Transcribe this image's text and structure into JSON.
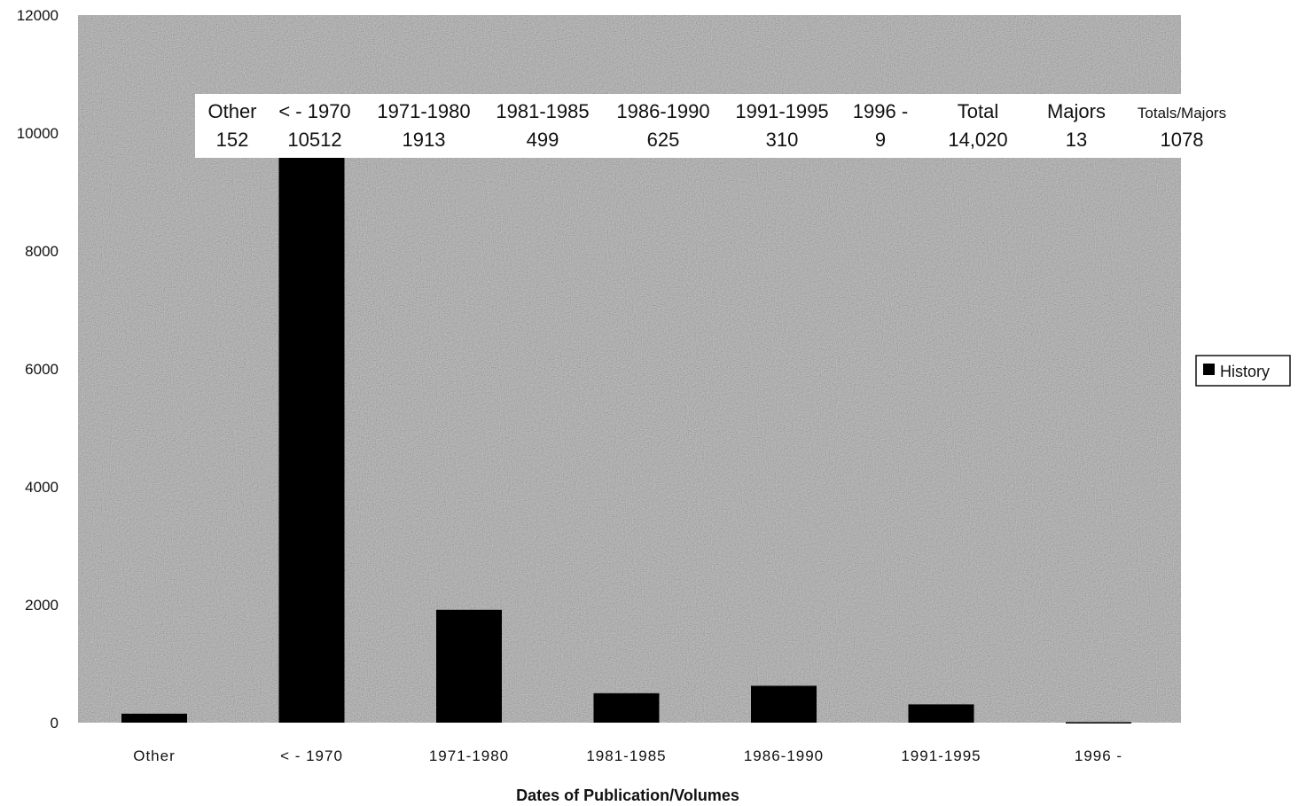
{
  "chart_data": {
    "type": "bar",
    "categories": [
      "Other",
      "< - 1970",
      "1971-1980",
      "1981-1985",
      "1986-1990",
      "1991-1995",
      "1996 -"
    ],
    "series": [
      {
        "name": "History",
        "values": [
          152,
          10512,
          1913,
          499,
          625,
          310,
          9
        ],
        "color": "#000000"
      }
    ],
    "title": "",
    "xlabel": "Dates of Publication/Volumes",
    "ylabel": "",
    "ylim": [
      0,
      12000
    ],
    "yticks": [
      0,
      2000,
      4000,
      6000,
      8000,
      10000,
      12000
    ],
    "grid": false,
    "legend_position": "right",
    "plot_background": "#a9a9a9",
    "data_table": {
      "headers": [
        "Other",
        "< - 1970",
        "1971-1980",
        "1981-1985",
        "1986-1990",
        "1991-1995",
        "1996 -",
        "Total",
        "Majors",
        "Totals/Majors"
      ],
      "values": [
        "152",
        "10512",
        "1913",
        "499",
        "625",
        "310",
        "9",
        "14,020",
        "13",
        "1078"
      ]
    }
  }
}
